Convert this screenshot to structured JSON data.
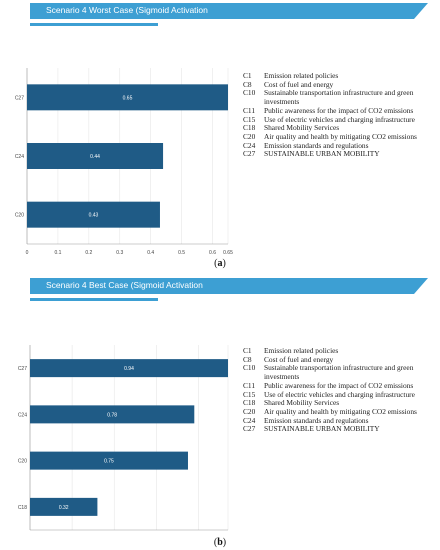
{
  "chart_data": [
    {
      "type": "bar",
      "orientation": "horizontal",
      "title": "Scenario 4 Worst Case (Sigmoid Activation",
      "categories": [
        "C27",
        "C24",
        "C20"
      ],
      "values": [
        0.65,
        0.44,
        0.43
      ],
      "data_labels": [
        "0.65",
        "0.44",
        "0.43"
      ],
      "xlim": [
        0,
        0.65
      ],
      "xticks": [
        "0",
        "0.1",
        "0.2",
        "0.3",
        "0.4",
        "0.5",
        "0.6",
        "0.65"
      ],
      "grid": true,
      "bar_color": "#1f5b86",
      "panel_label": "a"
    },
    {
      "type": "bar",
      "orientation": "horizontal",
      "title": "Scenario 4 Best Case (Sigmoid Activation",
      "categories": [
        "C27",
        "C24",
        "C20",
        "C18"
      ],
      "values": [
        0.94,
        0.78,
        0.75,
        0.32
      ],
      "data_labels": [
        "0.94",
        "0.78",
        "0.75",
        "0.32"
      ],
      "xlim": [
        0,
        0.94
      ],
      "xticks": [
        "0",
        "0.2",
        "0.4",
        "0.6",
        "0.8",
        "0.94"
      ],
      "grid": true,
      "bar_color": "#1f5b86",
      "panel_label": "b"
    }
  ],
  "legend": [
    {
      "code": "C1",
      "desc": "Emission related policies"
    },
    {
      "code": "C8",
      "desc": "Cost of fuel and energy"
    },
    {
      "code": "C10",
      "desc": "Sustainable transportation infrastructure and green investments"
    },
    {
      "code": "C11",
      "desc": "Public awareness for the impact of CO2 emissions"
    },
    {
      "code": "C15",
      "desc": "Use of electric vehicles and charging infrastructure"
    },
    {
      "code": "C18",
      "desc": "Shared Mobility Services"
    },
    {
      "code": "C20",
      "desc": "Air quality and health by mitigating CO2 emissions"
    },
    {
      "code": "C24",
      "desc": "Emission standards and regulations"
    },
    {
      "code": "C27",
      "desc": "SUSTAINABLE URBAN MOBILITY"
    }
  ],
  "colors": {
    "banner": "#3d9fd3",
    "bar": "#1f5b86",
    "grid": "#e6e6e6"
  }
}
